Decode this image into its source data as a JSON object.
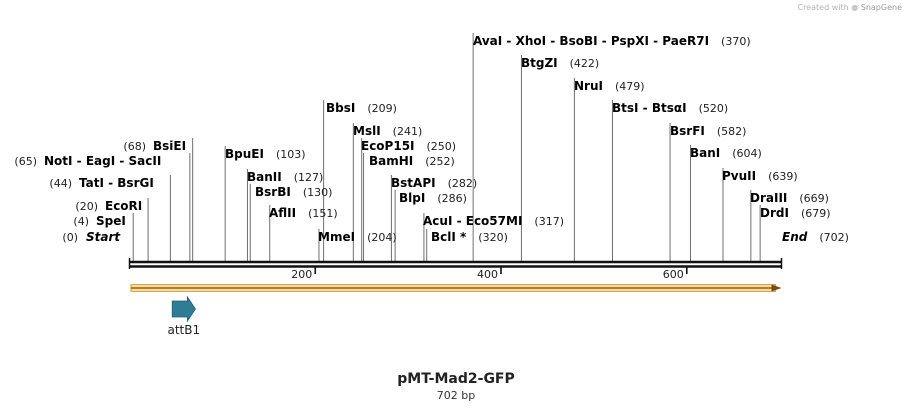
{
  "credit": {
    "prefix": "Created with",
    "brand": "SnapGene",
    "logo_icon": "snapgene-logo-icon"
  },
  "plasmid": {
    "name": "pMT-Mad2-GFP",
    "length_label": "702 bp",
    "length": 702
  },
  "colors": {
    "backbone": "#111111",
    "orf_fill": "#f3dca0",
    "orf_border": "#e3a43a",
    "feature_fill": "#2f7d95",
    "leader": "#6f6f6f"
  },
  "ticks": [
    {
      "value": 200,
      "label": "200"
    },
    {
      "value": 400,
      "label": "400"
    },
    {
      "value": 600,
      "label": "600"
    }
  ],
  "orf": {
    "start": 1,
    "end": 702,
    "direction": "forward"
  },
  "features": [
    {
      "name": "attB1",
      "start": 47,
      "end": 71,
      "direction": "forward"
    }
  ],
  "sites": [
    {
      "name": "Start",
      "pos": 0,
      "pos_label": "(0)",
      "style": "end",
      "side": "right"
    },
    {
      "name": "SpeI",
      "pos": 4,
      "pos_label": "(4)",
      "side": "left"
    },
    {
      "name": "EcoRI",
      "pos": 20,
      "pos_label": "(20)",
      "side": "left"
    },
    {
      "name": "TatI  -  BsrGI",
      "pos": 44,
      "pos_label": "(44)",
      "side": "left"
    },
    {
      "name": "NotI  -  EagI  -  SacII",
      "pos": 65,
      "pos_label": "(65)",
      "side": "left"
    },
    {
      "name": "BsiEI",
      "pos": 68,
      "pos_label": "(68)",
      "side": "left"
    },
    {
      "name": "BpuEI",
      "pos": 103,
      "pos_label": "(103)",
      "side": "right"
    },
    {
      "name": "BanII",
      "pos": 127,
      "pos_label": "(127)",
      "side": "right"
    },
    {
      "name": "BsrBI",
      "pos": 130,
      "pos_label": "(130)",
      "side": "right"
    },
    {
      "name": "AflII",
      "pos": 151,
      "pos_label": "(151)",
      "side": "right"
    },
    {
      "name": "MmeI",
      "pos": 204,
      "pos_label": "(204)",
      "side": "right"
    },
    {
      "name": "BbsI",
      "pos": 209,
      "pos_label": "(209)",
      "side": "right"
    },
    {
      "name": "MslI",
      "pos": 241,
      "pos_label": "(241)",
      "side": "right"
    },
    {
      "name": "EcoP15I",
      "pos": 250,
      "pos_label": "(250)",
      "side": "right"
    },
    {
      "name": "BamHI",
      "pos": 252,
      "pos_label": "(252)",
      "side": "right"
    },
    {
      "name": "BstAPI",
      "pos": 282,
      "pos_label": "(282)",
      "side": "right"
    },
    {
      "name": "BlpI",
      "pos": 286,
      "pos_label": "(286)",
      "side": "right"
    },
    {
      "name": "AcuI  -  Eco57MI",
      "pos": 317,
      "pos_label": "(317)",
      "side": "right"
    },
    {
      "name": "BclI *",
      "pos": 320,
      "pos_label": "(320)",
      "side": "right"
    },
    {
      "name": "AvaI  -  XhoI  -  BsoBI  -  PspXI  -  PaeR7I",
      "pos": 370,
      "pos_label": "(370)",
      "side": "right"
    },
    {
      "name": "BtgZI",
      "pos": 422,
      "pos_label": "(422)",
      "side": "right"
    },
    {
      "name": "NruI",
      "pos": 479,
      "pos_label": "(479)",
      "side": "right"
    },
    {
      "name": "BtsI  -  BtsαI",
      "pos": 520,
      "pos_label": "(520)",
      "side": "right"
    },
    {
      "name": "BsrFI",
      "pos": 582,
      "pos_label": "(582)",
      "side": "right"
    },
    {
      "name": "BanI",
      "pos": 604,
      "pos_label": "(604)",
      "side": "right"
    },
    {
      "name": "PvuII",
      "pos": 639,
      "pos_label": "(639)",
      "side": "right"
    },
    {
      "name": "DraIII",
      "pos": 669,
      "pos_label": "(669)",
      "side": "right"
    },
    {
      "name": "DrdI",
      "pos": 679,
      "pos_label": "(679)",
      "side": "right"
    },
    {
      "name": "End",
      "pos": 702,
      "pos_label": "(702)",
      "style": "end",
      "side": "right"
    }
  ]
}
